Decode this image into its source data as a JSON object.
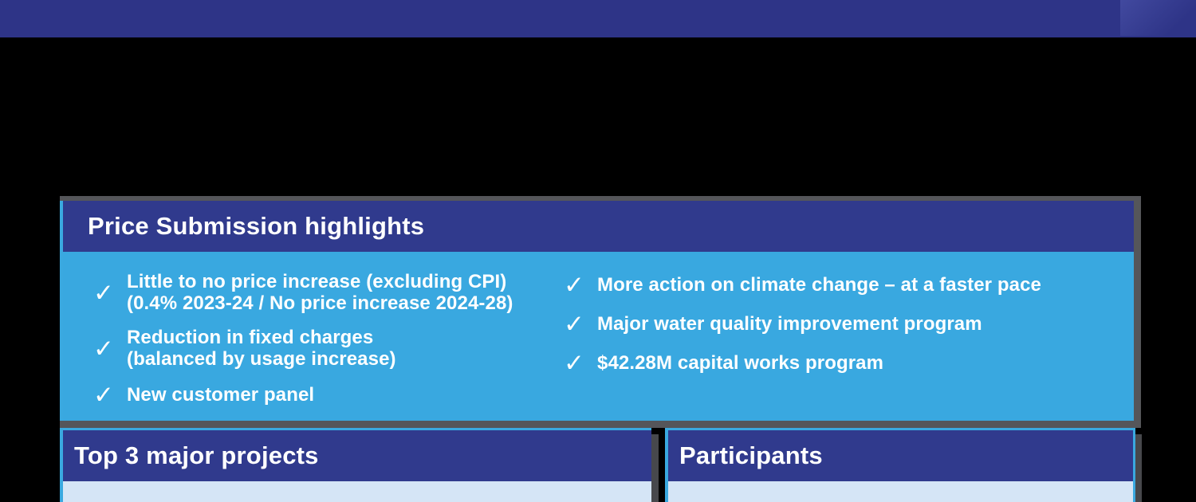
{
  "slide": {
    "highlights": {
      "title": "Price Submission highlights",
      "check_icon": "✓",
      "left_items": [
        {
          "line1": "Little to no price increase (excluding CPI)",
          "line2": "(0.4% 2023-24 / No price increase 2024-28)"
        },
        {
          "line1": "Reduction in fixed charges",
          "line2": "(balanced by usage increase)"
        },
        {
          "line1": "New customer panel"
        }
      ],
      "right_items": [
        {
          "line1": "More action on climate change – at a faster pace"
        },
        {
          "line1": "Major water quality improvement program"
        },
        {
          "line1": "$42.28M capital works program"
        }
      ]
    },
    "bottom_cards": [
      {
        "title": "Top 3 major projects"
      },
      {
        "title": "Participants"
      }
    ],
    "colors": {
      "top_bar": "#2E3487",
      "panel_header": "#303A8D",
      "panel_body_blue": "#39A8E0",
      "panel_body_light": "#D5E5F6",
      "accent_border": "#3AA9E0",
      "shadow_gray": "#55565A",
      "text": "#FFFFFF",
      "page_background": "#000000"
    }
  }
}
